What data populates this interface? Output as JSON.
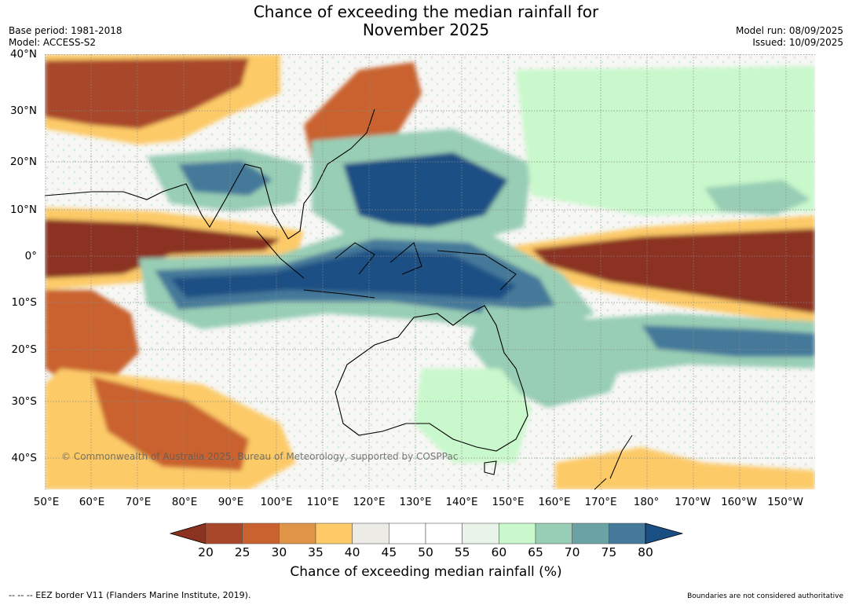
{
  "title_line1": "Chance of exceeding the median rainfall for",
  "title_line2": "November 2025",
  "meta": {
    "base_period": "Base period: 1981-2018",
    "model": "Model: ACCESS-S2",
    "model_run": "Model run: 08/09/2025",
    "issued": "Issued: 10/09/2025"
  },
  "lat_labels": [
    "40°N",
    "30°N",
    "20°N",
    "10°N",
    "0°",
    "10°S",
    "20°S",
    "30°S",
    "40°S"
  ],
  "lon_labels": [
    "50°E",
    "60°E",
    "70°E",
    "80°E",
    "90°E",
    "100°E",
    "110°E",
    "120°E",
    "130°E",
    "140°E",
    "150°E",
    "160°E",
    "170°E",
    "180°",
    "170°W",
    "160°W",
    "150°W"
  ],
  "colorbar": {
    "label": "Chance of exceeding median rainfall (%)",
    "ticks": [
      "20",
      "25",
      "30",
      "35",
      "40",
      "45",
      "50",
      "55",
      "60",
      "65",
      "70",
      "75",
      "80"
    ],
    "colors": [
      "#8b3320",
      "#a9472a",
      "#c9622f",
      "#e09447",
      "#fdca67",
      "#ecebe6",
      "#ffffff",
      "#ffffff",
      "#e8f4e9",
      "#c9f8cc",
      "#98ceb5",
      "#6ba3a5",
      "#44799a",
      "#1a4f84"
    ]
  },
  "copyright": "© Commonwealth of Australia 2025, Bureau of Meteorology, supported by COSPPac",
  "footer_left": "--  --  -- EEZ border V11 (Flanders Marine Institute, 2019).",
  "footer_right": "Boundaries are not considered authoritative"
}
